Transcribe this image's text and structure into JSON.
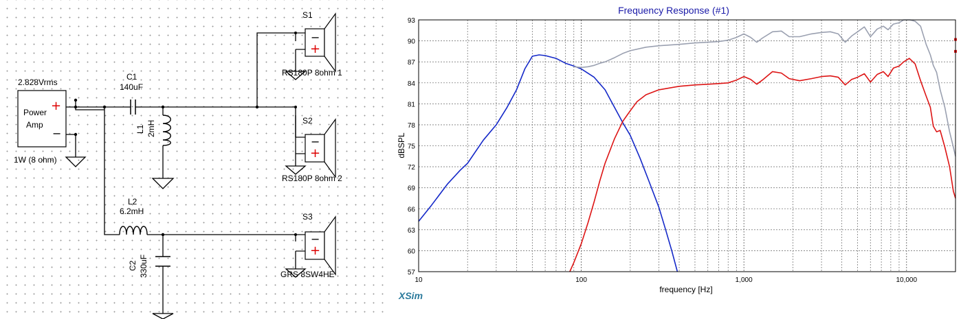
{
  "schematic": {
    "source": {
      "voltage": "2.828Vrms",
      "name_line1": "Power",
      "name_line2": "Amp",
      "power": "1W (8 ohm)"
    },
    "c1": {
      "ref": "C1",
      "value": "140uF"
    },
    "l1": {
      "ref": "L1",
      "value": "2mH"
    },
    "l2": {
      "ref": "L2",
      "value": "6.2mH"
    },
    "c2": {
      "ref": "C2",
      "value": "330uF"
    },
    "s1": {
      "ref": "S1",
      "model": "RS180P 8ohm 1"
    },
    "s2": {
      "ref": "S2",
      "model": "RS180P 8ohm 2"
    },
    "s3": {
      "ref": "S3",
      "model": "GRS 8SW4HE"
    },
    "plus_sign": "+",
    "minus_sign": "−"
  },
  "chart_panel": {
    "brand": "XSim"
  },
  "chart_data": {
    "type": "line",
    "title": "Frequency Response (#1)",
    "xlabel": "frequency [Hz]",
    "ylabel": "dBSPL",
    "xscale": "log",
    "xlim": [
      10,
      20000
    ],
    "ylim": [
      57,
      93
    ],
    "x_ticks": [
      "10",
      "100",
      "1,000",
      "10,000"
    ],
    "y_ticks": [
      "57",
      "60",
      "63",
      "66",
      "69",
      "72",
      "75",
      "78",
      "81",
      "84",
      "87",
      "90",
      "93"
    ],
    "grid": true,
    "series": [
      {
        "color": "#1428c8",
        "points": [
          [
            10,
            64.2
          ],
          [
            12,
            66.5
          ],
          [
            15,
            69.5
          ],
          [
            18,
            71.5
          ],
          [
            20,
            72.5
          ],
          [
            25,
            75.8
          ],
          [
            30,
            78
          ],
          [
            35,
            80.5
          ],
          [
            40,
            83
          ],
          [
            45,
            86
          ],
          [
            50,
            87.8
          ],
          [
            55,
            88
          ],
          [
            60,
            87.9
          ],
          [
            70,
            87.5
          ],
          [
            80,
            86.8
          ],
          [
            90,
            86.4
          ],
          [
            100,
            86
          ],
          [
            120,
            84.8
          ],
          [
            140,
            83
          ],
          [
            160,
            80.5
          ],
          [
            180,
            78.3
          ],
          [
            200,
            76.5
          ],
          [
            230,
            73.2
          ],
          [
            260,
            70
          ],
          [
            300,
            66.2
          ],
          [
            330,
            63
          ],
          [
            360,
            60
          ],
          [
            390,
            57
          ]
        ]
      },
      {
        "color": "#dd1414",
        "points": [
          [
            85,
            57
          ],
          [
            90,
            58.3
          ],
          [
            100,
            61
          ],
          [
            110,
            64
          ],
          [
            120,
            67
          ],
          [
            130,
            70
          ],
          [
            140,
            72.5
          ],
          [
            160,
            76
          ],
          [
            180,
            78.5
          ],
          [
            200,
            80
          ],
          [
            220,
            81.3
          ],
          [
            250,
            82.3
          ],
          [
            300,
            83
          ],
          [
            400,
            83.5
          ],
          [
            500,
            83.7
          ],
          [
            600,
            83.8
          ],
          [
            700,
            83.9
          ],
          [
            800,
            84
          ],
          [
            900,
            84.4
          ],
          [
            1000,
            84.9
          ],
          [
            1100,
            84.5
          ],
          [
            1200,
            83.8
          ],
          [
            1300,
            84.4
          ],
          [
            1500,
            85.6
          ],
          [
            1700,
            85.4
          ],
          [
            1900,
            84.6
          ],
          [
            2200,
            84.3
          ],
          [
            2600,
            84.6
          ],
          [
            3000,
            84.9
          ],
          [
            3400,
            85
          ],
          [
            3800,
            84.8
          ],
          [
            4200,
            83.7
          ],
          [
            4600,
            84.5
          ],
          [
            5000,
            84.8
          ],
          [
            5500,
            85.3
          ],
          [
            6000,
            84.1
          ],
          [
            6600,
            85.2
          ],
          [
            7200,
            85.6
          ],
          [
            7700,
            84.9
          ],
          [
            8300,
            86.1
          ],
          [
            9000,
            86.4
          ],
          [
            9600,
            87
          ],
          [
            10400,
            87.5
          ],
          [
            11300,
            86.7
          ],
          [
            12200,
            84.3
          ],
          [
            13200,
            82.1
          ],
          [
            14000,
            80.5
          ],
          [
            14600,
            77.8
          ],
          [
            15300,
            77
          ],
          [
            16100,
            77.2
          ],
          [
            17200,
            74.8
          ],
          [
            18400,
            72
          ],
          [
            19400,
            68.5
          ],
          [
            20000,
            67.5
          ]
        ]
      },
      {
        "color": "#9aa0b0",
        "points": [
          [
            90,
            86.3
          ],
          [
            100,
            86.2
          ],
          [
            110,
            86.3
          ],
          [
            120,
            86.5
          ],
          [
            130,
            86.8
          ],
          [
            140,
            87
          ],
          [
            160,
            87.6
          ],
          [
            180,
            88.2
          ],
          [
            200,
            88.6
          ],
          [
            250,
            89.1
          ],
          [
            300,
            89.3
          ],
          [
            400,
            89.5
          ],
          [
            500,
            89.7
          ],
          [
            600,
            89.8
          ],
          [
            700,
            89.9
          ],
          [
            800,
            90.1
          ],
          [
            900,
            90.5
          ],
          [
            1000,
            91
          ],
          [
            1100,
            90.5
          ],
          [
            1200,
            89.8
          ],
          [
            1300,
            90.4
          ],
          [
            1500,
            91.3
          ],
          [
            1700,
            91.4
          ],
          [
            1900,
            90.6
          ],
          [
            2200,
            90.6
          ],
          [
            2600,
            91
          ],
          [
            3000,
            91.2
          ],
          [
            3400,
            91.3
          ],
          [
            3800,
            91
          ],
          [
            4200,
            89.8
          ],
          [
            4600,
            90.7
          ],
          [
            5000,
            91.3
          ],
          [
            5500,
            92
          ],
          [
            6000,
            90.6
          ],
          [
            6600,
            91.7
          ],
          [
            7200,
            92.1
          ],
          [
            7700,
            91.6
          ],
          [
            8300,
            92.4
          ],
          [
            9000,
            92.6
          ],
          [
            9600,
            93
          ],
          [
            10500,
            93
          ],
          [
            11300,
            92.8
          ],
          [
            12200,
            92.1
          ],
          [
            13200,
            89.5
          ],
          [
            14000,
            88
          ],
          [
            14600,
            86.5
          ],
          [
            15300,
            85.5
          ],
          [
            16100,
            83
          ],
          [
            17200,
            80.5
          ],
          [
            18400,
            77
          ],
          [
            19400,
            74.8
          ],
          [
            20000,
            73.5
          ]
        ]
      }
    ]
  }
}
